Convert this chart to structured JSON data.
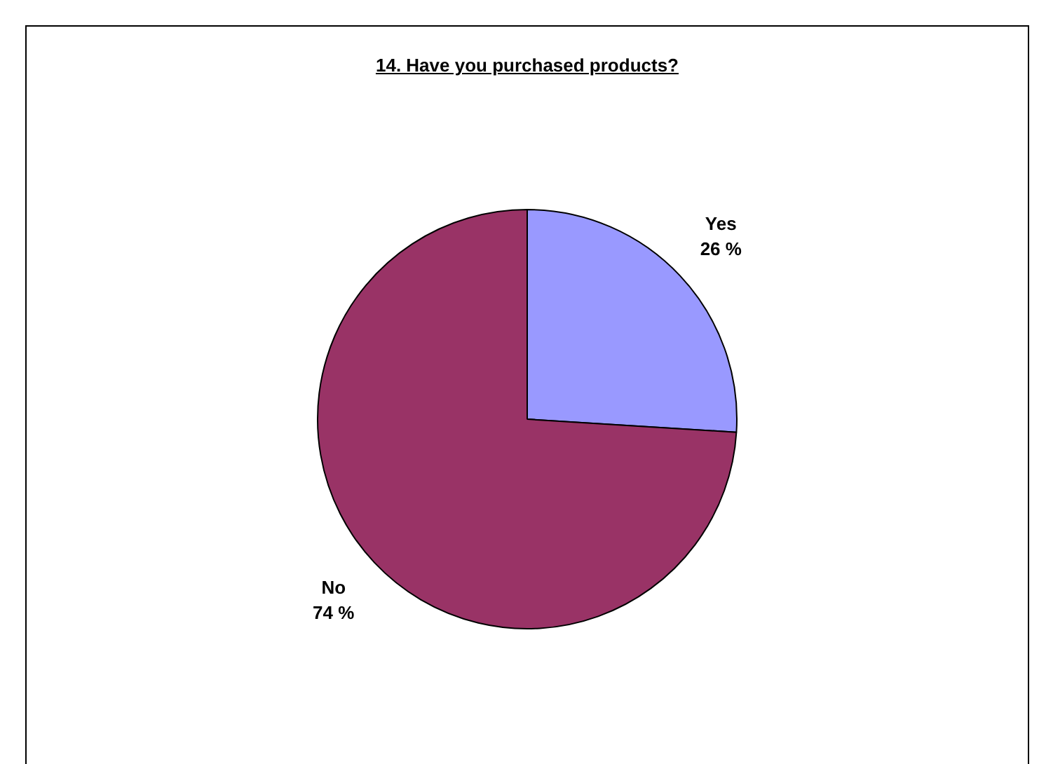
{
  "chart_data": {
    "type": "pie",
    "title": "14. Have you purchased products?",
    "categories": [
      "Yes",
      "No"
    ],
    "values": [
      26,
      74
    ],
    "colors": [
      "#9999ff",
      "#993366"
    ],
    "value_labels": [
      "26 %",
      "74 %"
    ],
    "legend": false
  }
}
